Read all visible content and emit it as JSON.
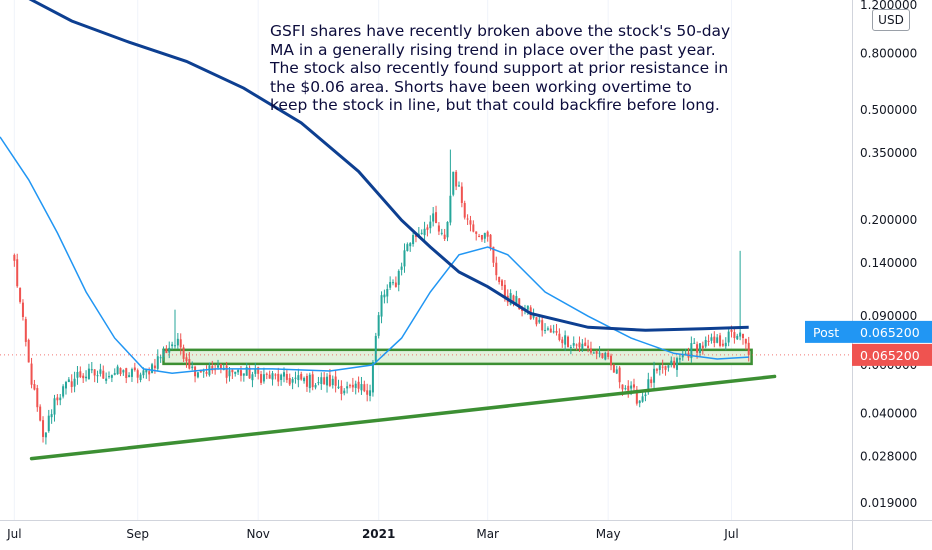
{
  "annotation": {
    "lines": [
      "GSFI shares have recently broken above the stock's 50-day",
      "MA in a generally rising trend in place over the past year.",
      "The stock also recently found support at prior resistance in",
      "the $0.06 area. Shorts have been working overtime to",
      "keep the stock in line, but that could backfire before long."
    ]
  },
  "currency": "USD",
  "post_label": "Post",
  "post_value": "0.065200",
  "last_price_label": "0.065200",
  "colors": {
    "up": "#26a69a",
    "down": "#ef5350",
    "ma_slow": "#0d3f91",
    "ma_fast": "#2196f3",
    "trend": "#3c8f33",
    "zone_fill": "#e3f1dc",
    "post_badge": "#2196f3",
    "last_badge": "#ef5350"
  },
  "chart_data": {
    "type": "candlestick",
    "title": "",
    "scale": "log",
    "y_ticks": [
      {
        "value": 1.2,
        "label": "1.200000"
      },
      {
        "value": 0.8,
        "label": "0.800000"
      },
      {
        "value": 0.5,
        "label": "0.500000"
      },
      {
        "value": 0.35,
        "label": "0.350000"
      },
      {
        "value": 0.2,
        "label": "0.200000"
      },
      {
        "value": 0.14,
        "label": "0.140000"
      },
      {
        "value": 0.09,
        "label": "0.090000"
      },
      {
        "value": 0.06,
        "label": "0.060000"
      },
      {
        "value": 0.04,
        "label": "0.040000"
      },
      {
        "value": 0.028,
        "label": "0.028000"
      },
      {
        "value": 0.019,
        "label": "0.019000"
      }
    ],
    "x_ticks": [
      {
        "label": "Jul",
        "index": 0,
        "bold": false
      },
      {
        "label": "Sep",
        "index": 43,
        "bold": false
      },
      {
        "label": "Nov",
        "index": 85,
        "bold": false
      },
      {
        "label": "2021",
        "index": 127,
        "bold": true
      },
      {
        "label": "Mar",
        "index": 165,
        "bold": false
      },
      {
        "label": "May",
        "index": 207,
        "bold": false
      },
      {
        "label": "Jul",
        "index": 250,
        "bold": false
      }
    ],
    "x_range": [
      -5,
      292
    ],
    "ylim": [
      0.0165,
      1.25
    ],
    "candle_count": 257,
    "key_closes": [
      {
        "index": 0,
        "value": 0.14
      },
      {
        "index": 5,
        "value": 0.06
      },
      {
        "index": 10,
        "value": 0.032
      },
      {
        "index": 14,
        "value": 0.045
      },
      {
        "index": 22,
        "value": 0.055
      },
      {
        "index": 35,
        "value": 0.056
      },
      {
        "index": 45,
        "value": 0.055
      },
      {
        "index": 50,
        "value": 0.063
      },
      {
        "index": 55,
        "value": 0.072
      },
      {
        "index": 58,
        "value": 0.07
      },
      {
        "index": 62,
        "value": 0.058
      },
      {
        "index": 75,
        "value": 0.057
      },
      {
        "index": 95,
        "value": 0.053
      },
      {
        "index": 110,
        "value": 0.052
      },
      {
        "index": 118,
        "value": 0.048
      },
      {
        "index": 124,
        "value": 0.05
      },
      {
        "index": 126,
        "value": 0.075
      },
      {
        "index": 128,
        "value": 0.105
      },
      {
        "index": 133,
        "value": 0.12
      },
      {
        "index": 137,
        "value": 0.165
      },
      {
        "index": 143,
        "value": 0.19
      },
      {
        "index": 146,
        "value": 0.2
      },
      {
        "index": 150,
        "value": 0.165
      },
      {
        "index": 153,
        "value": 0.3
      },
      {
        "index": 158,
        "value": 0.2
      },
      {
        "index": 165,
        "value": 0.17
      },
      {
        "index": 170,
        "value": 0.11
      },
      {
        "index": 178,
        "value": 0.095
      },
      {
        "index": 185,
        "value": 0.08
      },
      {
        "index": 195,
        "value": 0.072
      },
      {
        "index": 205,
        "value": 0.065
      },
      {
        "index": 213,
        "value": 0.05
      },
      {
        "index": 218,
        "value": 0.045
      },
      {
        "index": 223,
        "value": 0.055
      },
      {
        "index": 230,
        "value": 0.06
      },
      {
        "index": 237,
        "value": 0.07
      },
      {
        "index": 245,
        "value": 0.072
      },
      {
        "index": 252,
        "value": 0.078
      },
      {
        "index": 255,
        "value": 0.07
      },
      {
        "index": 256,
        "value": 0.0652
      }
    ],
    "spikes": [
      {
        "index": 56,
        "value": 0.095
      },
      {
        "index": 152,
        "value": 0.36
      },
      {
        "index": 253,
        "value": 0.155
      }
    ],
    "ma_slow": [
      {
        "index": 0,
        "value": 1.35
      },
      {
        "index": 20,
        "value": 1.05
      },
      {
        "index": 40,
        "value": 0.88
      },
      {
        "index": 60,
        "value": 0.75
      },
      {
        "index": 80,
        "value": 0.6
      },
      {
        "index": 100,
        "value": 0.45
      },
      {
        "index": 120,
        "value": 0.3
      },
      {
        "index": 135,
        "value": 0.2
      },
      {
        "index": 145,
        "value": 0.16
      },
      {
        "index": 155,
        "value": 0.13
      },
      {
        "index": 165,
        "value": 0.115
      },
      {
        "index": 180,
        "value": 0.092
      },
      {
        "index": 200,
        "value": 0.082
      },
      {
        "index": 220,
        "value": 0.08
      },
      {
        "index": 240,
        "value": 0.081
      },
      {
        "index": 256,
        "value": 0.082
      }
    ],
    "ma_fast": [
      {
        "index": -5,
        "value": 0.4
      },
      {
        "index": 5,
        "value": 0.28
      },
      {
        "index": 15,
        "value": 0.18
      },
      {
        "index": 25,
        "value": 0.11
      },
      {
        "index": 35,
        "value": 0.075
      },
      {
        "index": 45,
        "value": 0.058
      },
      {
        "index": 55,
        "value": 0.056
      },
      {
        "index": 70,
        "value": 0.058
      },
      {
        "index": 90,
        "value": 0.058
      },
      {
        "index": 110,
        "value": 0.057
      },
      {
        "index": 125,
        "value": 0.06
      },
      {
        "index": 135,
        "value": 0.075
      },
      {
        "index": 145,
        "value": 0.11
      },
      {
        "index": 155,
        "value": 0.15
      },
      {
        "index": 165,
        "value": 0.16
      },
      {
        "index": 172,
        "value": 0.15
      },
      {
        "index": 185,
        "value": 0.11
      },
      {
        "index": 200,
        "value": 0.09
      },
      {
        "index": 215,
        "value": 0.075
      },
      {
        "index": 230,
        "value": 0.066
      },
      {
        "index": 245,
        "value": 0.063
      },
      {
        "index": 256,
        "value": 0.064
      }
    ],
    "support_zone": {
      "start": 52,
      "end": 257,
      "low": 0.0605,
      "high": 0.068
    },
    "trendline": {
      "start": {
        "index": 6,
        "value": 0.0275
      },
      "end": {
        "index": 265,
        "value": 0.0545
      }
    }
  }
}
